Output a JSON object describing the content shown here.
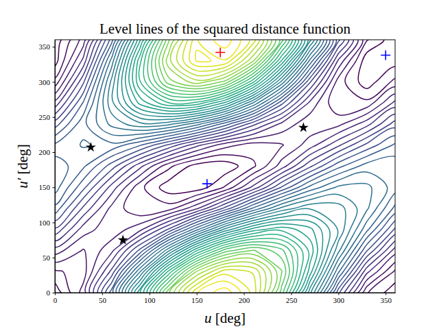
{
  "chart_data": {
    "type": "contour",
    "title": "Level lines of the squared distance function",
    "x_label": "u [deg]",
    "y_label": "u′ [deg]",
    "xlim": [
      0,
      360
    ],
    "ylim": [
      0,
      360
    ],
    "xticks": [
      0,
      50,
      100,
      150,
      200,
      250,
      300,
      350
    ],
    "yticks": [
      0,
      50,
      100,
      150,
      200,
      250,
      300,
      350
    ],
    "color": "viridis",
    "x": [
      0,
      30,
      60,
      90,
      120,
      150,
      180,
      210,
      240,
      270,
      300,
      330,
      360
    ],
    "y": [
      0,
      30,
      60,
      90,
      120,
      150,
      180,
      210,
      240,
      270,
      300,
      330,
      360
    ],
    "z": [
      [
        0.03,
        0.34,
        1.05,
        1.98,
        2.87,
        3.49,
        3.67,
        3.36,
        2.65,
        1.73,
        0.83,
        0.21,
        0.03
      ],
      [
        0.18,
        0.25,
        0.73,
        1.49,
        2.32,
        3.01,
        3.36,
        3.29,
        2.81,
        2.05,
        1.22,
        0.53,
        0.18
      ],
      [
        0.45,
        0.29,
        0.47,
        0.93,
        1.57,
        2.19,
        2.65,
        2.81,
        2.63,
        2.17,
        1.53,
        0.91,
        0.45
      ],
      [
        0.78,
        0.45,
        0.33,
        0.47,
        0.81,
        1.27,
        1.73,
        2.05,
        2.17,
        2.03,
        1.69,
        1.23,
        0.78
      ],
      [
        1.07,
        0.68,
        0.37,
        0.21,
        0.25,
        0.48,
        0.83,
        1.22,
        1.53,
        1.69,
        1.65,
        1.42,
        1.07
      ],
      [
        1.25,
        0.93,
        0.56,
        0.23,
        0.04,
        0.03,
        0.21,
        0.53,
        0.91,
        1.23,
        1.42,
        1.43,
        1.25
      ],
      [
        1.27,
        1.12,
        0.85,
        0.53,
        0.23,
        0.05,
        0.03,
        0.18,
        0.45,
        0.78,
        1.07,
        1.25,
        1.27
      ],
      [
        1.12,
        1.21,
        1.17,
        1.01,
        0.78,
        0.53,
        0.34,
        0.25,
        0.29,
        0.45,
        0.68,
        0.93,
        1.12
      ],
      [
        0.85,
        1.17,
        1.43,
        1.57,
        1.53,
        1.34,
        1.05,
        0.73,
        0.47,
        0.33,
        0.37,
        0.56,
        0.85
      ],
      [
        0.53,
        1.01,
        1.57,
        2.03,
        2.29,
        2.27,
        1.98,
        1.49,
        0.93,
        0.47,
        0.21,
        0.23,
        0.53
      ],
      [
        0.23,
        0.78,
        1.53,
        2.29,
        2.85,
        3.06,
        2.87,
        2.32,
        1.57,
        0.81,
        0.25,
        0.04,
        0.23
      ],
      [
        0.05,
        0.53,
        1.34,
        2.27,
        3.06,
        3.51,
        3.49,
        3.01,
        2.19,
        1.27,
        0.48,
        0.03,
        0.05
      ],
      [
        0.03,
        0.34,
        1.05,
        1.98,
        2.87,
        3.49,
        3.67,
        3.36,
        2.65,
        1.73,
        0.83,
        0.21,
        0.03
      ]
    ],
    "levels": [
      0.1,
      0.2,
      0.3,
      0.4,
      0.5,
      0.6,
      0.7,
      0.8,
      0.9,
      1.0,
      1.1,
      1.2,
      1.3,
      1.4,
      1.5,
      1.6,
      1.7,
      1.8,
      1.9,
      2.0,
      2.1,
      2.2,
      2.3,
      2.4,
      2.5,
      2.6,
      2.7,
      2.8,
      2.9,
      3.0,
      3.1,
      3.2,
      3.3,
      3.4,
      3.5,
      3.6
    ],
    "series": [
      {
        "type": "scatter",
        "marker": "plus",
        "color": "#ff0000",
        "x": [
          175
        ],
        "values": [
          342
        ]
      },
      {
        "type": "scatter",
        "marker": "plus",
        "color": "#0000ff",
        "x": [
          161,
          350
        ],
        "values": [
          155,
          338
        ]
      },
      {
        "type": "scatter",
        "marker": "star",
        "color": "#000000",
        "x": [
          38,
          72,
          263
        ],
        "values": [
          207,
          75,
          235
        ]
      }
    ]
  }
}
